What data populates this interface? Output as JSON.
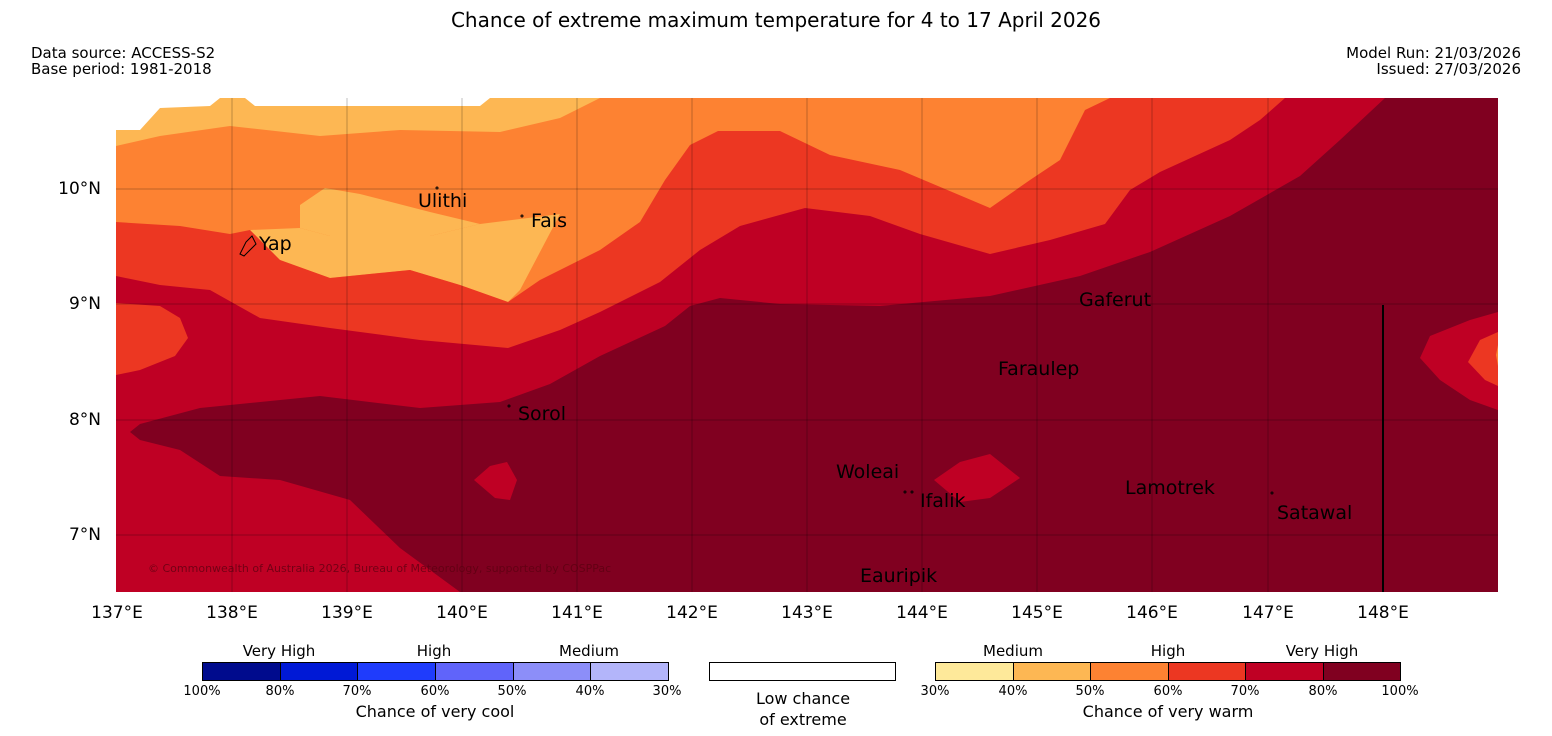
{
  "title": "Chance of extreme maximum temperature for 4 to 17 April 2026",
  "header": {
    "data_source": "Data source: ACCESS-S2",
    "base_period": "Base period: 1981-2018",
    "model_run": "Model Run: 21/03/2026",
    "issued": "Issued: 27/03/2026"
  },
  "map": {
    "lon_labels": [
      "137°E",
      "138°E",
      "139°E",
      "140°E",
      "141°E",
      "142°E",
      "143°E",
      "144°E",
      "145°E",
      "146°E",
      "147°E",
      "148°E"
    ],
    "lat_labels": [
      "10°N",
      "9°N",
      "8°N",
      "7°N"
    ],
    "places": [
      "Ulithi",
      "Fais",
      "Yap",
      "Gaferut",
      "Faraulep",
      "Sorol",
      "Woleai",
      "Ifalik",
      "Lamotrek",
      "Satawal",
      "Eauripik"
    ],
    "copyright": "© Commonwealth of Australia 2026, Bureau of Meteorology, supported by COSPPac",
    "colors": {
      "p40_50": "#fdb753",
      "p50_60": "#fd8232",
      "p60_70": "#ec3722",
      "p70_80": "#bf0024",
      "p80_100": "#800020"
    }
  },
  "legend": {
    "cool": {
      "categories": [
        "Very High",
        "High",
        "Medium"
      ],
      "ticks": [
        "100%",
        "80%",
        "70%",
        "60%",
        "50%",
        "40%",
        "30%"
      ],
      "colors": [
        "#000b8d",
        "#0019d6",
        "#1f3cfc",
        "#6064fa",
        "#8c8ef9",
        "#b3b5fa"
      ],
      "caption": "Chance of very cool"
    },
    "neutral": {
      "caption_line1": "Low chance",
      "caption_line2": "of extreme"
    },
    "warm": {
      "categories": [
        "Medium",
        "High",
        "Very High"
      ],
      "ticks": [
        "30%",
        "40%",
        "50%",
        "60%",
        "70%",
        "80%",
        "100%"
      ],
      "colors": [
        "#fee99a",
        "#fdb753",
        "#fd8232",
        "#ec3722",
        "#bf0024",
        "#800020"
      ],
      "caption": "Chance of very warm"
    }
  }
}
